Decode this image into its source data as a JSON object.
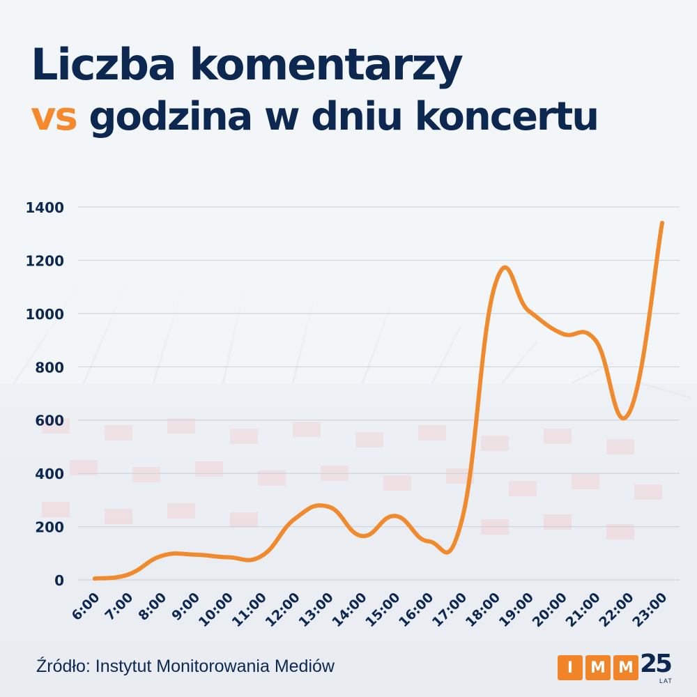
{
  "header": {
    "title_line1": "Liczba komentarzy",
    "title_vs": "vs",
    "title_line2_rest": " godzina w dniu koncertu"
  },
  "footer": {
    "source": "Źródło: Instytut Monitorowania Mediów"
  },
  "logo": {
    "letters": [
      "I",
      "M",
      "M"
    ],
    "number": "25",
    "suffix": "LAT"
  },
  "colors": {
    "title": "#0c2750",
    "accent": "#f5892b",
    "line": "#f08a2c",
    "grid": "#c9ced6",
    "tick_text": "#0c2750"
  },
  "background_image": "stadium-photo",
  "chart_data": {
    "type": "line",
    "title": "Liczba komentarzy vs godzina w dniu koncertu",
    "xlabel": "",
    "ylabel": "",
    "categories": [
      "6:00",
      "7:00",
      "8:00",
      "9:00",
      "10:00",
      "11:00",
      "12:00",
      "13:00",
      "14:00",
      "15:00",
      "16:00",
      "17:00",
      "18:00",
      "19:00",
      "20:00",
      "21:00",
      "22:00",
      "23:00"
    ],
    "series": [
      {
        "values": [
          5,
          20,
          90,
          95,
          85,
          90,
          230,
          275,
          165,
          240,
          145,
          225,
          1110,
          1010,
          925,
          900,
          625,
          1340
        ]
      }
    ],
    "ylim": [
      0,
      1400
    ],
    "yticks": [
      0,
      200,
      400,
      600,
      800,
      1000,
      1200,
      1400
    ],
    "grid": true,
    "smooth": true,
    "legend": "none"
  }
}
